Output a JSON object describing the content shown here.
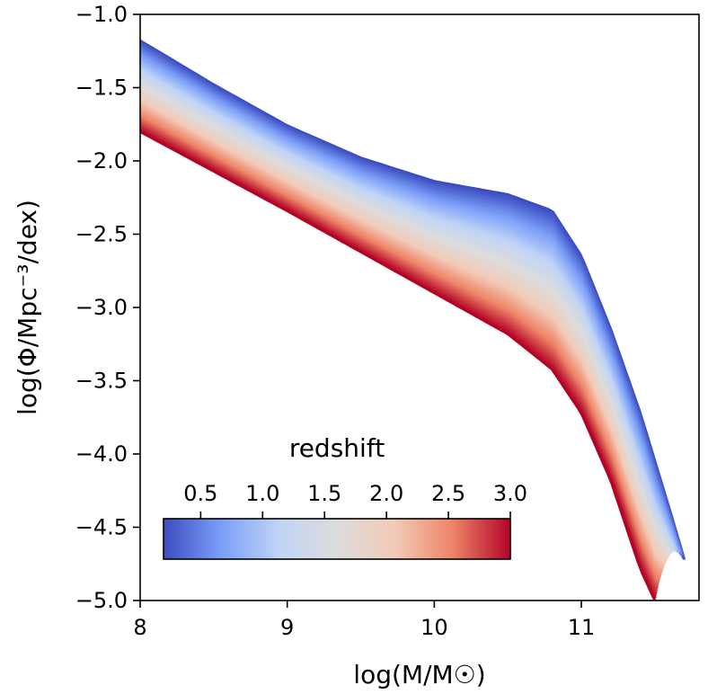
{
  "chart_data": {
    "type": "line",
    "title": "",
    "xlabel": "log(M/M☉)",
    "ylabel": "log(Φ/Mpc⁻³/dex)",
    "xlim": [
      8.0,
      11.8
    ],
    "ylim": [
      -5.0,
      -1.0
    ],
    "x_ticks": [
      8,
      9,
      10,
      11
    ],
    "x_tick_labels": [
      "8",
      "9",
      "10",
      "11"
    ],
    "y_ticks": [
      -1.0,
      -1.5,
      -2.0,
      -2.5,
      -3.0,
      -3.5,
      -4.0,
      -4.5,
      -5.0
    ],
    "y_tick_labels": [
      "−1.0",
      "−1.5",
      "−2.0",
      "−2.5",
      "−3.0",
      "−3.5",
      "−4.0",
      "−4.5",
      "−5.0"
    ],
    "grid": false,
    "colormap": {
      "name": "coolwarm",
      "label": "redshift",
      "range": [
        0.2,
        3.0
      ],
      "ticks": [
        0.5,
        1.0,
        1.5,
        2.0,
        2.5,
        3.0
      ],
      "tick_labels": [
        "0.5",
        "1.0",
        "1.5",
        "2.0",
        "2.5",
        "3.0"
      ],
      "colors": [
        "#3b4cc0",
        "#7b9ff9",
        "#c0d4f5",
        "#dddcdc",
        "#f2cbb7",
        "#ee8468",
        "#b40426"
      ],
      "placement": "lower-left"
    },
    "series": [
      {
        "redshift": 0.2,
        "x": [
          8.0,
          8.5,
          9.0,
          9.5,
          10.0,
          10.5,
          10.8,
          11.0,
          11.2,
          11.4,
          11.5,
          11.6,
          11.7
        ],
        "y": [
          -1.18,
          -1.48,
          -1.76,
          -1.98,
          -2.14,
          -2.23,
          -2.34,
          -2.65,
          -3.15,
          -3.72,
          -4.05,
          -4.38,
          -4.72
        ]
      },
      {
        "redshift": 3.0,
        "x": [
          8.0,
          8.5,
          9.0,
          9.5,
          10.0,
          10.5,
          10.8,
          11.0,
          11.2,
          11.3,
          11.4,
          11.5
        ],
        "y": [
          -1.8,
          -2.07,
          -2.34,
          -2.62,
          -2.9,
          -3.18,
          -3.42,
          -3.72,
          -4.18,
          -4.48,
          -4.78,
          -5.0
        ]
      }
    ]
  }
}
